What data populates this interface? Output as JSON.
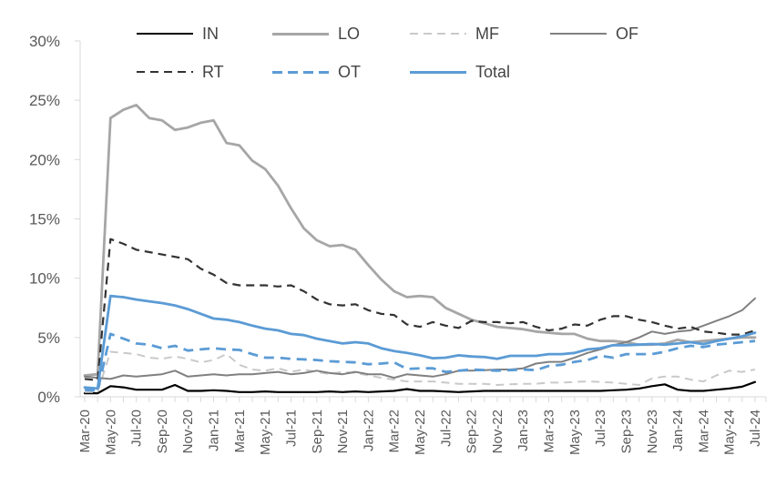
{
  "chart_data": {
    "type": "line",
    "title": "",
    "xlabel": "",
    "ylabel": "",
    "ylim": [
      0,
      30
    ],
    "y_ticks": [
      0,
      5,
      10,
      15,
      20,
      25,
      30
    ],
    "y_tick_labels": [
      "0%",
      "5%",
      "10%",
      "15%",
      "20%",
      "25%",
      "30%"
    ],
    "x_tick_step": 2,
    "grid": false,
    "legend_position": "top",
    "axis_color": "#d9d9d9",
    "tick_label_color": "#595959",
    "months": [
      "Mar-20",
      "Apr-20",
      "May-20",
      "Jun-20",
      "Jul-20",
      "Aug-20",
      "Sep-20",
      "Oct-20",
      "Nov-20",
      "Dec-20",
      "Jan-21",
      "Feb-21",
      "Mar-21",
      "Apr-21",
      "May-21",
      "Jun-21",
      "Jul-21",
      "Aug-21",
      "Sep-21",
      "Oct-21",
      "Nov-21",
      "Dec-21",
      "Jan-22",
      "Feb-22",
      "Mar-22",
      "Apr-22",
      "May-22",
      "Jun-22",
      "Jul-22",
      "Aug-22",
      "Sep-22",
      "Oct-22",
      "Nov-22",
      "Dec-22",
      "Jan-23",
      "Feb-23",
      "Mar-23",
      "Apr-23",
      "May-23",
      "Jun-23",
      "Jul-23",
      "Aug-23",
      "Sep-23",
      "Oct-23",
      "Nov-23",
      "Dec-23",
      "Jan-24",
      "Feb-24",
      "Mar-24",
      "Apr-24",
      "May-24",
      "Jun-24",
      "Jul-24"
    ],
    "series": [
      {
        "name": "IN",
        "color": "#000000",
        "dash": false,
        "width": 2.2,
        "values": [
          0.3,
          0.3,
          0.9,
          0.8,
          0.6,
          0.6,
          0.6,
          1.0,
          0.5,
          0.5,
          0.55,
          0.5,
          0.4,
          0.4,
          0.45,
          0.4,
          0.4,
          0.4,
          0.4,
          0.45,
          0.4,
          0.45,
          0.4,
          0.45,
          0.5,
          0.65,
          0.5,
          0.5,
          0.45,
          0.4,
          0.45,
          0.5,
          0.5,
          0.5,
          0.5,
          0.5,
          0.5,
          0.5,
          0.5,
          0.5,
          0.5,
          0.55,
          0.6,
          0.7,
          0.9,
          1.05,
          0.6,
          0.5,
          0.5,
          0.6,
          0.7,
          0.85,
          1.25
        ]
      },
      {
        "name": "LO",
        "color": "#a6a6a6",
        "dash": false,
        "width": 2.8,
        "values": [
          1.8,
          1.9,
          23.5,
          24.2,
          24.6,
          23.5,
          23.3,
          22.5,
          22.7,
          23.1,
          23.3,
          21.4,
          21.2,
          19.9,
          19.2,
          17.8,
          15.9,
          14.2,
          13.2,
          12.7,
          12.8,
          12.4,
          11.1,
          9.9,
          8.9,
          8.4,
          8.5,
          8.4,
          7.5,
          7.0,
          6.5,
          6.2,
          5.9,
          5.8,
          5.7,
          5.5,
          5.4,
          5.3,
          5.3,
          4.9,
          4.7,
          4.7,
          4.6,
          4.4,
          4.4,
          4.5,
          4.8,
          4.6,
          4.7,
          4.8,
          4.9,
          5.0,
          5.0
        ]
      },
      {
        "name": "MF",
        "color": "#c9c9c9",
        "dash": true,
        "width": 2.0,
        "values": [
          0.4,
          0.4,
          3.8,
          3.7,
          3.6,
          3.3,
          3.2,
          3.4,
          3.2,
          2.9,
          3.1,
          3.6,
          2.7,
          2.3,
          2.2,
          2.4,
          2.1,
          2.3,
          2.1,
          1.9,
          2.1,
          2.0,
          1.8,
          1.6,
          1.45,
          1.3,
          1.3,
          1.3,
          1.2,
          1.1,
          1.1,
          1.1,
          1.0,
          1.05,
          1.1,
          1.1,
          1.2,
          1.2,
          1.25,
          1.3,
          1.25,
          1.2,
          1.1,
          1.0,
          1.55,
          1.7,
          1.7,
          1.45,
          1.3,
          1.8,
          2.2,
          2.1,
          2.3
        ]
      },
      {
        "name": "OF",
        "color": "#808080",
        "dash": false,
        "width": 2.0,
        "values": [
          1.7,
          1.6,
          1.5,
          1.8,
          1.7,
          1.8,
          1.9,
          2.2,
          1.7,
          1.8,
          1.9,
          1.8,
          1.9,
          1.9,
          2.0,
          2.1,
          1.9,
          2.0,
          2.2,
          2.0,
          1.9,
          2.1,
          1.9,
          1.9,
          1.6,
          1.9,
          1.8,
          1.7,
          1.9,
          2.2,
          2.2,
          2.25,
          2.3,
          2.3,
          2.4,
          2.8,
          2.95,
          2.95,
          3.3,
          3.7,
          4.0,
          4.35,
          4.6,
          5.0,
          5.5,
          5.3,
          5.5,
          5.6,
          6.0,
          6.4,
          6.8,
          7.3,
          8.3
        ]
      },
      {
        "name": "RT",
        "color": "#333333",
        "dash": true,
        "width": 2.2,
        "values": [
          1.5,
          1.4,
          13.3,
          12.9,
          12.4,
          12.2,
          12.0,
          11.8,
          11.6,
          10.8,
          10.3,
          9.6,
          9.4,
          9.4,
          9.4,
          9.3,
          9.4,
          8.9,
          8.2,
          7.8,
          7.7,
          7.8,
          7.3,
          7.0,
          6.9,
          6.1,
          5.9,
          6.3,
          6.0,
          5.8,
          6.4,
          6.3,
          6.3,
          6.2,
          6.3,
          5.9,
          5.6,
          5.75,
          6.1,
          6.0,
          6.5,
          6.8,
          6.8,
          6.5,
          6.3,
          6.0,
          5.75,
          5.9,
          5.5,
          5.4,
          5.25,
          5.25,
          5.6
        ]
      },
      {
        "name": "OT",
        "color": "#5b9bd5",
        "dash": true,
        "width": 2.8,
        "values": [
          0.6,
          0.5,
          5.3,
          4.9,
          4.5,
          4.4,
          4.1,
          4.3,
          3.9,
          4.0,
          4.1,
          4.0,
          3.95,
          3.6,
          3.3,
          3.3,
          3.2,
          3.15,
          3.1,
          3.0,
          2.95,
          2.9,
          2.75,
          2.8,
          2.9,
          2.35,
          2.4,
          2.4,
          2.1,
          2.2,
          2.3,
          2.25,
          2.2,
          2.25,
          2.3,
          2.25,
          2.6,
          2.7,
          2.95,
          3.1,
          3.45,
          3.3,
          3.6,
          3.6,
          3.6,
          3.8,
          4.1,
          4.3,
          4.2,
          4.4,
          4.5,
          4.6,
          4.7
        ]
      },
      {
        "name": "Total",
        "color": "#5b9bd5",
        "dash": false,
        "width": 2.8,
        "values": [
          0.8,
          0.7,
          8.5,
          8.4,
          8.2,
          8.05,
          7.9,
          7.7,
          7.4,
          7.0,
          6.6,
          6.5,
          6.3,
          6.0,
          5.75,
          5.6,
          5.3,
          5.2,
          4.9,
          4.7,
          4.5,
          4.6,
          4.5,
          4.1,
          3.85,
          3.7,
          3.5,
          3.25,
          3.3,
          3.5,
          3.4,
          3.35,
          3.2,
          3.45,
          3.45,
          3.45,
          3.6,
          3.6,
          3.7,
          4.0,
          4.1,
          4.35,
          4.35,
          4.4,
          4.45,
          4.4,
          4.5,
          4.6,
          4.45,
          4.7,
          4.9,
          5.1,
          5.4
        ]
      }
    ]
  }
}
